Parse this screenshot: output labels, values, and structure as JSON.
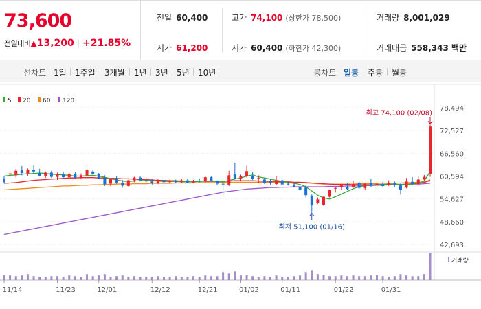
{
  "summary": {
    "price": "73,600",
    "change_label": "전일대비",
    "change_symbol": "▲",
    "change_amount": "13,200",
    "change_rate": "+21.85%"
  },
  "stats": {
    "prev_close": {
      "label": "전일",
      "value": "60,400"
    },
    "open": {
      "label": "시가",
      "value": "61,200"
    },
    "high": {
      "label": "고가",
      "value": "74,100",
      "sub": "(상한가 78,500)"
    },
    "low": {
      "label": "저가",
      "value": "60,400",
      "sub": "(하한가 42,300)"
    },
    "volume": {
      "label": "거래량",
      "value": "8,001,029"
    },
    "amount": {
      "label": "거래대금",
      "value": "558,343 백만"
    }
  },
  "tabs": {
    "line_head": "선차트",
    "line": [
      "1일",
      "1주일",
      "3개월",
      "1년",
      "3년",
      "5년",
      "10년"
    ],
    "candle_head": "봉차트",
    "candle": [
      "일봉",
      "주봉",
      "월봉"
    ],
    "candle_selected": 0
  },
  "chart_data": {
    "type": "candlestick",
    "ylim": [
      42693,
      78494
    ],
    "y_ticks": [
      "78,494",
      "72,527",
      "66,560",
      "60,594",
      "54,627",
      "48,660",
      "42,693"
    ],
    "x_ticks": [
      "11/14",
      "11/23",
      "12/01",
      "12/12",
      "12/21",
      "01/02",
      "01/11",
      "01/22",
      "01/31"
    ],
    "legend": [
      {
        "name": "5",
        "color": "#3aa83a"
      },
      {
        "name": "20",
        "color": "#e8262d"
      },
      {
        "name": "60",
        "color": "#f08a1c"
      },
      {
        "name": "120",
        "color": "#9b59c7"
      }
    ],
    "volume_label": "거래량",
    "annotations": {
      "high": "최고 74,100 (02/08)",
      "low": "최저 51,100 (01/16)"
    },
    "candles": [
      {
        "o": 60000,
        "h": 60600,
        "l": 58700,
        "c": 59000
      },
      {
        "o": 61000,
        "h": 61600,
        "l": 60400,
        "c": 61300
      },
      {
        "o": 60800,
        "h": 62500,
        "l": 60200,
        "c": 62000
      },
      {
        "o": 62100,
        "h": 63200,
        "l": 60800,
        "c": 61400
      },
      {
        "o": 61300,
        "h": 62600,
        "l": 60700,
        "c": 62300
      },
      {
        "o": 62300,
        "h": 63500,
        "l": 61200,
        "c": 61800
      },
      {
        "o": 61400,
        "h": 62500,
        "l": 60500,
        "c": 60700
      },
      {
        "o": 60700,
        "h": 61800,
        "l": 60100,
        "c": 61500
      },
      {
        "o": 61500,
        "h": 62000,
        "l": 60100,
        "c": 60400
      },
      {
        "o": 60400,
        "h": 61500,
        "l": 59600,
        "c": 61000
      },
      {
        "o": 61000,
        "h": 61600,
        "l": 59800,
        "c": 60300
      },
      {
        "o": 60300,
        "h": 61500,
        "l": 60100,
        "c": 61200
      },
      {
        "o": 61200,
        "h": 61700,
        "l": 59900,
        "c": 60200
      },
      {
        "o": 60200,
        "h": 61300,
        "l": 59800,
        "c": 60800
      },
      {
        "o": 60800,
        "h": 62500,
        "l": 60500,
        "c": 62200
      },
      {
        "o": 61800,
        "h": 62300,
        "l": 60900,
        "c": 61200
      },
      {
        "o": 61200,
        "h": 61400,
        "l": 59800,
        "c": 60000
      },
      {
        "o": 60100,
        "h": 60800,
        "l": 58000,
        "c": 58500
      },
      {
        "o": 58600,
        "h": 60000,
        "l": 57900,
        "c": 59800
      },
      {
        "o": 59800,
        "h": 60600,
        "l": 58600,
        "c": 58900
      },
      {
        "o": 58900,
        "h": 59600,
        "l": 57600,
        "c": 58100
      },
      {
        "o": 58000,
        "h": 59700,
        "l": 57800,
        "c": 59500
      },
      {
        "o": 59500,
        "h": 60400,
        "l": 59000,
        "c": 60200
      },
      {
        "o": 60200,
        "h": 60600,
        "l": 59200,
        "c": 59500
      },
      {
        "o": 59500,
        "h": 60300,
        "l": 58700,
        "c": 59200
      },
      {
        "o": 59200,
        "h": 59800,
        "l": 58400,
        "c": 58800
      },
      {
        "o": 58800,
        "h": 59900,
        "l": 58500,
        "c": 59600
      },
      {
        "o": 59600,
        "h": 60100,
        "l": 58600,
        "c": 59000
      },
      {
        "o": 59000,
        "h": 59700,
        "l": 58600,
        "c": 59400
      },
      {
        "o": 59400,
        "h": 59700,
        "l": 58800,
        "c": 59000
      },
      {
        "o": 59000,
        "h": 59900,
        "l": 58800,
        "c": 59500
      },
      {
        "o": 59500,
        "h": 60000,
        "l": 58700,
        "c": 58900
      },
      {
        "o": 58900,
        "h": 59600,
        "l": 58700,
        "c": 59400
      },
      {
        "o": 59400,
        "h": 60000,
        "l": 58900,
        "c": 59300
      },
      {
        "o": 59300,
        "h": 60500,
        "l": 58800,
        "c": 60300
      },
      {
        "o": 60300,
        "h": 60600,
        "l": 59200,
        "c": 59400
      },
      {
        "o": 59400,
        "h": 59500,
        "l": 58200,
        "c": 58600
      },
      {
        "o": 58600,
        "h": 59200,
        "l": 55300,
        "c": 58400
      },
      {
        "o": 58200,
        "h": 62000,
        "l": 58000,
        "c": 60800
      },
      {
        "o": 61200,
        "h": 64100,
        "l": 59800,
        "c": 59900
      },
      {
        "o": 60000,
        "h": 61000,
        "l": 59200,
        "c": 60600
      },
      {
        "o": 60500,
        "h": 63300,
        "l": 60200,
        "c": 61900
      },
      {
        "o": 60500,
        "h": 61600,
        "l": 59600,
        "c": 59900
      },
      {
        "o": 59900,
        "h": 60800,
        "l": 58700,
        "c": 60100
      },
      {
        "o": 59700,
        "h": 60200,
        "l": 58500,
        "c": 58800
      },
      {
        "o": 59300,
        "h": 59800,
        "l": 58400,
        "c": 58700
      },
      {
        "o": 58500,
        "h": 60500,
        "l": 58200,
        "c": 59500
      },
      {
        "o": 59500,
        "h": 59600,
        "l": 58200,
        "c": 58400
      },
      {
        "o": 58600,
        "h": 59000,
        "l": 58100,
        "c": 58500
      },
      {
        "o": 58400,
        "h": 58800,
        "l": 57600,
        "c": 57800
      },
      {
        "o": 57800,
        "h": 58200,
        "l": 56800,
        "c": 57000
      },
      {
        "o": 57600,
        "h": 58200,
        "l": 55000,
        "c": 55600
      },
      {
        "o": 55500,
        "h": 55800,
        "l": 51100,
        "c": 52900
      },
      {
        "o": 53600,
        "h": 55000,
        "l": 53300,
        "c": 54500
      },
      {
        "o": 53100,
        "h": 55400,
        "l": 52800,
        "c": 55200
      },
      {
        "o": 55200,
        "h": 57100,
        "l": 55000,
        "c": 57000
      },
      {
        "o": 57300,
        "h": 57800,
        "l": 56300,
        "c": 57500
      },
      {
        "o": 57800,
        "h": 58600,
        "l": 56900,
        "c": 58300
      },
      {
        "o": 57800,
        "h": 58900,
        "l": 56900,
        "c": 57200
      },
      {
        "o": 57800,
        "h": 59300,
        "l": 57500,
        "c": 58500
      },
      {
        "o": 58900,
        "h": 59100,
        "l": 57200,
        "c": 57500
      },
      {
        "o": 57500,
        "h": 58700,
        "l": 57000,
        "c": 58600
      },
      {
        "o": 58700,
        "h": 59900,
        "l": 57800,
        "c": 58100
      },
      {
        "o": 58100,
        "h": 60200,
        "l": 57200,
        "c": 58600
      },
      {
        "o": 58500,
        "h": 59100,
        "l": 57700,
        "c": 58000
      },
      {
        "o": 58300,
        "h": 59500,
        "l": 58000,
        "c": 58900
      },
      {
        "o": 58900,
        "h": 59200,
        "l": 57800,
        "c": 58200
      },
      {
        "o": 58200,
        "h": 58700,
        "l": 55800,
        "c": 57000
      },
      {
        "o": 57600,
        "h": 60100,
        "l": 57400,
        "c": 59200
      },
      {
        "o": 59100,
        "h": 60300,
        "l": 58300,
        "c": 58500
      },
      {
        "o": 58500,
        "h": 60700,
        "l": 58100,
        "c": 59700
      },
      {
        "o": 59700,
        "h": 60900,
        "l": 59300,
        "c": 60400
      },
      {
        "o": 61200,
        "h": 74100,
        "l": 60400,
        "c": 73600
      }
    ],
    "volume": [
      8,
      7,
      6,
      7,
      9,
      6,
      5,
      5,
      6,
      6,
      5,
      7,
      6,
      5,
      9,
      6,
      7,
      9,
      5,
      6,
      7,
      5,
      6,
      5,
      5,
      5,
      6,
      5,
      5,
      6,
      5,
      5,
      6,
      5,
      7,
      6,
      6,
      12,
      10,
      13,
      7,
      8,
      6,
      5,
      6,
      5,
      7,
      5,
      5,
      6,
      7,
      12,
      15,
      9,
      8,
      6,
      6,
      7,
      6,
      7,
      6,
      6,
      7,
      8,
      6,
      5,
      6,
      9,
      7,
      6,
      6,
      9,
      40
    ],
    "ma5": [
      60600,
      60800,
      60900,
      61100,
      61200,
      61300,
      61400,
      61300,
      61100,
      61000,
      60900,
      60800,
      60600,
      60600,
      60700,
      60800,
      60600,
      60300,
      59900,
      59600,
      59300,
      59200,
      59300,
      59400,
      59500,
      59400,
      59300,
      59200,
      59200,
      59200,
      59100,
      59100,
      59100,
      59200,
      59300,
      59300,
      59200,
      59100,
      59500,
      59800,
      60100,
      60600,
      60900,
      60400,
      60100,
      59800,
      59500,
      59200,
      58900,
      58700,
      58400,
      57800,
      56700,
      55600,
      54900,
      54600,
      55200,
      55900,
      56600,
      57300,
      57800,
      58100,
      58300,
      58400,
      58400,
      58500,
      58500,
      58400,
      58400,
      58500,
      58800,
      59300,
      61800
    ],
    "ma20": [
      58700,
      58800,
      58900,
      59100,
      59300,
      59500,
      59600,
      59700,
      59800,
      59900,
      60000,
      60100,
      60100,
      60200,
      60200,
      60200,
      60100,
      60100,
      60000,
      60000,
      59900,
      59900,
      59800,
      59700,
      59700,
      59600,
      59500,
      59500,
      59400,
      59400,
      59300,
      59300,
      59300,
      59300,
      59200,
      59200,
      59200,
      59300,
      59300,
      59400,
      59400,
      59400,
      59400,
      59300,
      59300,
      59200,
      59200,
      59100,
      59100,
      59000,
      59000,
      58900,
      58800,
      58700,
      58600,
      58500,
      58400,
      58400,
      58400,
      58300,
      58300,
      58300,
      58300,
      58300,
      58300,
      58400,
      58400,
      58400,
      58500,
      58600,
      58700,
      58900,
      59600
    ],
    "ma60": [
      57000,
      57100,
      57200,
      57300,
      57400,
      57500,
      57600,
      57700,
      57800,
      57900,
      58000,
      58000,
      58100,
      58200,
      58200,
      58300,
      58300,
      58400,
      58400,
      58500,
      58500,
      58500,
      58600,
      58600,
      58600,
      58700,
      58700,
      58700,
      58700,
      58800,
      58800,
      58800,
      58800,
      58900,
      58900,
      58900,
      58900,
      59000,
      59000,
      59000,
      59000,
      59000,
      59000,
      59000,
      59000,
      59000,
      59000,
      59000,
      58900,
      58900,
      58900,
      58800,
      58700,
      58600,
      58500,
      58500,
      58500,
      58500,
      58500,
      58500,
      58600,
      58600,
      58600,
      58700,
      58700,
      58700,
      58800,
      58800,
      58900,
      58900,
      59000,
      59100,
      59300
    ],
    "ma120": [
      45300,
      45600,
      45900,
      46200,
      46500,
      46800,
      47100,
      47400,
      47700,
      48000,
      48300,
      48600,
      48900,
      49200,
      49500,
      49800,
      50100,
      50400,
      50700,
      51000,
      51300,
      51600,
      51900,
      52200,
      52500,
      52800,
      53100,
      53400,
      53700,
      54000,
      54300,
      54600,
      54900,
      55200,
      55500,
      55800,
      56100,
      56400,
      56600,
      56800,
      57000,
      57200,
      57300,
      57400,
      57500,
      57600,
      57600,
      57700,
      57700,
      57800,
      57800,
      57800,
      57800,
      57800,
      57800,
      57900,
      57900,
      57900,
      58000,
      58000,
      58000,
      58100,
      58100,
      58200,
      58200,
      58300,
      58300,
      58400,
      58400,
      58500,
      58500,
      58600,
      58700
    ]
  }
}
